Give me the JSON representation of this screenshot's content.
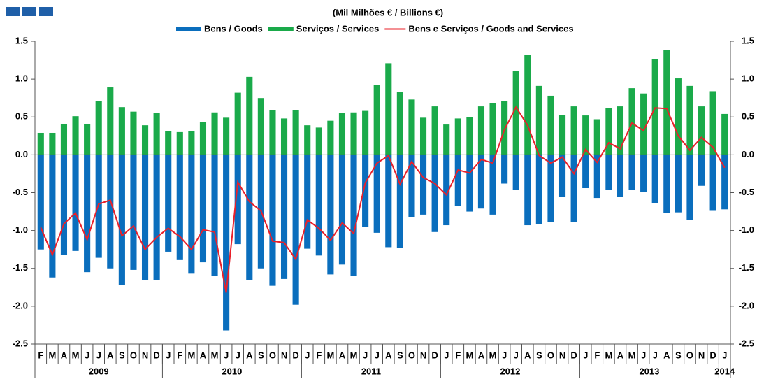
{
  "chart_data": {
    "type": "bar_line",
    "title": "(Mil Milhões € / Billions €)",
    "categories": [
      "F",
      "M",
      "A",
      "M",
      "J",
      "J",
      "A",
      "S",
      "O",
      "N",
      "D",
      "J",
      "F",
      "M",
      "A",
      "M",
      "J",
      "J",
      "A",
      "S",
      "O",
      "N",
      "D",
      "J",
      "F",
      "M",
      "A",
      "M",
      "J",
      "J",
      "A",
      "S",
      "O",
      "N",
      "D",
      "J",
      "F",
      "M",
      "A",
      "M",
      "J",
      "J",
      "A",
      "S",
      "O",
      "N",
      "D",
      "J",
      "F",
      "M",
      "A",
      "M",
      "J",
      "J",
      "A",
      "S",
      "O",
      "N",
      "D",
      "J"
    ],
    "years": [
      "2009",
      "2010",
      "2011",
      "2012",
      "2013",
      "2014"
    ],
    "series": [
      {
        "name": "Bens / Goods",
        "color": "#0a6ebd",
        "kind": "bar",
        "values": [
          -1.25,
          -1.62,
          -1.32,
          -1.27,
          -1.55,
          -1.36,
          -1.5,
          -1.72,
          -1.52,
          -1.65,
          -1.65,
          -1.28,
          -1.39,
          -1.57,
          -1.42,
          -1.6,
          -2.32,
          -1.18,
          -1.65,
          -1.5,
          -1.73,
          -1.64,
          -1.98,
          -1.24,
          -1.33,
          -1.58,
          -1.45,
          -1.6,
          -0.95,
          -1.03,
          -1.22,
          -1.23,
          -0.82,
          -0.79,
          -1.02,
          -0.93,
          -0.68,
          -0.75,
          -0.71,
          -0.79,
          -0.38,
          -0.46,
          -0.93,
          -0.92,
          -0.89,
          -0.56,
          -0.89,
          -0.44,
          -0.57,
          -0.46,
          -0.56,
          -0.46,
          -0.49,
          -0.64,
          -0.77,
          -0.76,
          -0.86,
          -0.41,
          -0.74,
          -0.72
        ]
      },
      {
        "name": "Serviços / Services",
        "color": "#1aaa4a",
        "kind": "bar",
        "values": [
          0.29,
          0.29,
          0.41,
          0.51,
          0.41,
          0.71,
          0.89,
          0.63,
          0.57,
          0.39,
          0.55,
          0.31,
          0.3,
          0.31,
          0.43,
          0.56,
          0.49,
          0.82,
          1.03,
          0.75,
          0.59,
          0.48,
          0.59,
          0.39,
          0.36,
          0.45,
          0.55,
          0.56,
          0.58,
          0.92,
          1.21,
          0.83,
          0.73,
          0.49,
          0.64,
          0.4,
          0.48,
          0.5,
          0.64,
          0.68,
          0.71,
          1.11,
          1.32,
          0.91,
          0.78,
          0.53,
          0.64,
          0.52,
          0.47,
          0.62,
          0.64,
          0.88,
          0.81,
          1.26,
          1.38,
          1.01,
          0.91,
          0.64,
          0.84,
          0.54
        ]
      },
      {
        "name": "Bens e Serviços  / Goods and Services",
        "color": "#e8202a",
        "kind": "line",
        "values": [
          -0.96,
          -1.32,
          -0.91,
          -0.77,
          -1.12,
          -0.65,
          -0.6,
          -1.07,
          -0.94,
          -1.25,
          -1.09,
          -0.97,
          -1.08,
          -1.25,
          -0.99,
          -1.02,
          -1.82,
          -0.36,
          -0.62,
          -0.74,
          -1.14,
          -1.16,
          -1.38,
          -0.86,
          -0.97,
          -1.13,
          -0.9,
          -1.04,
          -0.37,
          -0.11,
          -0.01,
          -0.39,
          -0.09,
          -0.3,
          -0.38,
          -0.53,
          -0.2,
          -0.24,
          -0.06,
          -0.11,
          0.33,
          0.63,
          0.39,
          -0.01,
          -0.11,
          -0.03,
          -0.25,
          0.07,
          -0.1,
          0.16,
          0.08,
          0.42,
          0.32,
          0.62,
          0.61,
          0.25,
          0.06,
          0.23,
          0.1,
          -0.17
        ]
      }
    ],
    "ylim": [
      -2.5,
      1.5
    ],
    "yticks": [
      {
        "value": 1.5,
        "label": "1.5"
      },
      {
        "value": 1,
        "label": "1.0"
      },
      {
        "value": 0.5,
        "label": "0.5"
      },
      {
        "value": 0,
        "label": "0.0"
      },
      {
        "value": -0.5,
        "label": "-0.5"
      },
      {
        "value": -1,
        "label": "-1.0"
      },
      {
        "value": -1.5,
        "label": "-1.5"
      },
      {
        "value": -2,
        "label": "-2.0"
      },
      {
        "value": -2.5,
        "label": "-2.5"
      }
    ],
    "y2lim": [
      -2.5,
      1.5
    ],
    "y2ticks": [
      {
        "value": 1.5,
        "label": "1.5"
      },
      {
        "value": 1,
        "label": "1.0"
      },
      {
        "value": 0.5,
        "label": "0.5"
      },
      {
        "value": 0,
        "label": "0.0"
      },
      {
        "value": -0.5,
        "label": "-0.5"
      },
      {
        "value": -1,
        "label": "-1.0"
      },
      {
        "value": -1.5,
        "label": "-1.5"
      },
      {
        "value": -2,
        "label": "-2.0"
      },
      {
        "value": -2.5,
        "label": "-2.5"
      }
    ]
  }
}
